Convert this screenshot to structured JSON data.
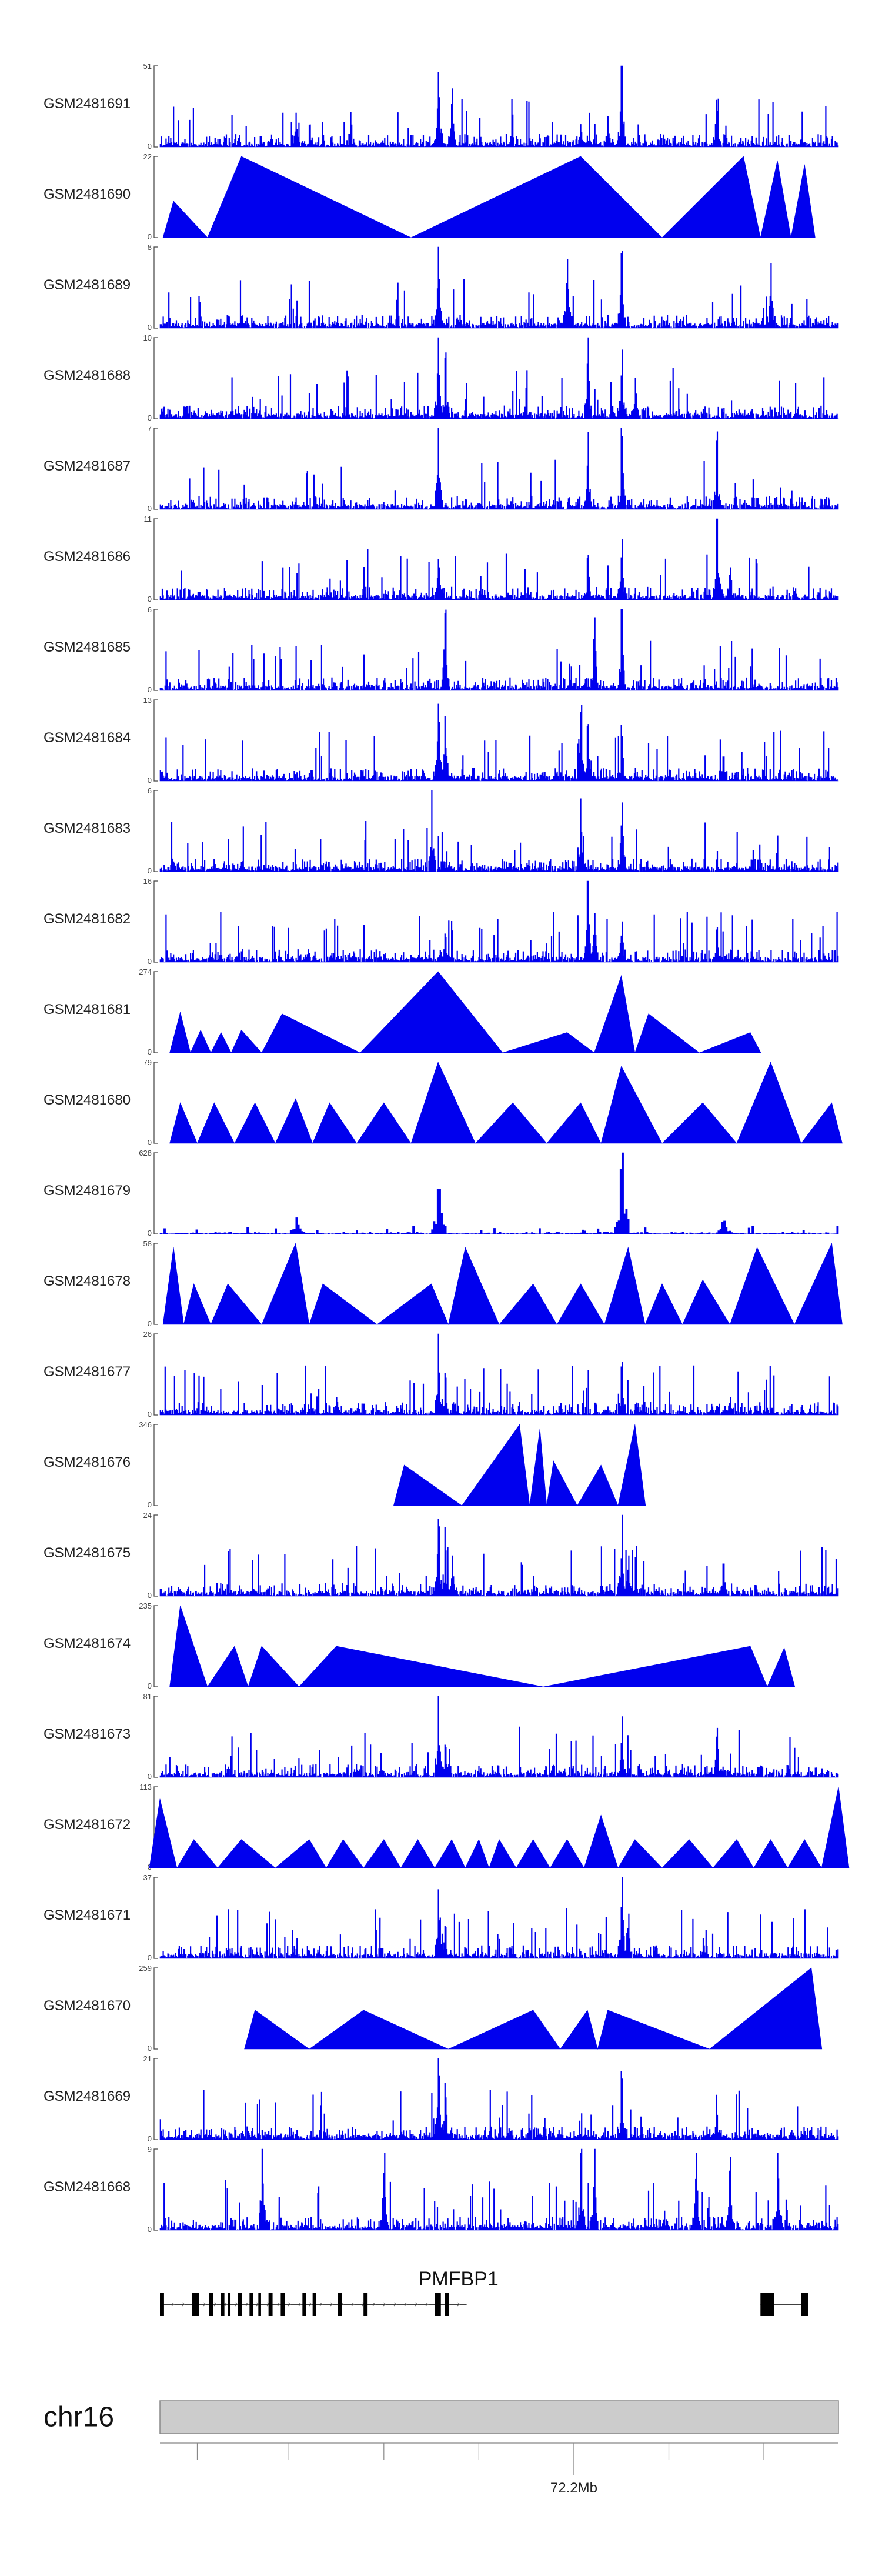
{
  "chart_data": {
    "type": "area",
    "title": "",
    "track_color": "#0000ee",
    "tracks": [
      {
        "name": "GSM2481691",
        "ymax": 51,
        "ylim": [
          0,
          51
        ],
        "style": "dense",
        "seed": 11,
        "peaks": [
          [
            0.2,
            0.42
          ],
          [
            0.41,
            0.92
          ],
          [
            0.43,
            0.72
          ],
          [
            0.62,
            0.28
          ],
          [
            0.66,
            0.38
          ],
          [
            0.68,
            1.0
          ],
          [
            0.82,
            0.58
          ]
        ]
      },
      {
        "name": "GSM2481690",
        "ymax": 22,
        "ylim": [
          0,
          22
        ],
        "style": "sparse",
        "seed": 12,
        "peaks": [
          [
            0.02,
            0.45
          ],
          [
            0.12,
            1.0
          ],
          [
            0.62,
            1.0
          ],
          [
            0.86,
            1.0
          ],
          [
            0.91,
            0.95
          ],
          [
            0.95,
            0.9
          ]
        ]
      },
      {
        "name": "GSM2481689",
        "ymax": 8,
        "ylim": [
          0,
          8
        ],
        "style": "dense",
        "seed": 13,
        "peaks": [
          [
            0.41,
            1.0
          ],
          [
            0.6,
            0.85
          ],
          [
            0.68,
            0.95
          ],
          [
            0.9,
            0.8
          ]
        ]
      },
      {
        "name": "GSM2481688",
        "ymax": 10,
        "ylim": [
          0,
          10
        ],
        "style": "dense",
        "seed": 14,
        "peaks": [
          [
            0.41,
            1.0
          ],
          [
            0.42,
            0.75
          ],
          [
            0.63,
            1.0
          ],
          [
            0.68,
            0.85
          ],
          [
            0.7,
            0.5
          ]
        ]
      },
      {
        "name": "GSM2481687",
        "ymax": 7,
        "ylim": [
          0,
          7
        ],
        "style": "dense",
        "seed": 15,
        "peaks": [
          [
            0.41,
            1.0
          ],
          [
            0.63,
            0.95
          ],
          [
            0.68,
            0.9
          ],
          [
            0.82,
            0.85
          ]
        ]
      },
      {
        "name": "GSM2481686",
        "ymax": 11,
        "ylim": [
          0,
          11
        ],
        "style": "dense",
        "seed": 16,
        "peaks": [
          [
            0.41,
            0.5
          ],
          [
            0.63,
            0.55
          ],
          [
            0.68,
            0.75
          ],
          [
            0.82,
            1.0
          ],
          [
            0.84,
            0.4
          ]
        ]
      },
      {
        "name": "GSM2481685",
        "ymax": 6,
        "ylim": [
          0,
          6
        ],
        "style": "dense",
        "seed": 17,
        "peaks": [
          [
            0.42,
            0.95
          ],
          [
            0.64,
            0.9
          ],
          [
            0.68,
            1.0
          ]
        ]
      },
      {
        "name": "GSM2481684",
        "ymax": 13,
        "ylim": [
          0,
          13
        ],
        "style": "dense",
        "seed": 18,
        "peaks": [
          [
            0.41,
            0.95
          ],
          [
            0.42,
            0.8
          ],
          [
            0.62,
            0.85
          ],
          [
            0.63,
            0.7
          ],
          [
            0.68,
            0.55
          ],
          [
            0.83,
            0.3
          ]
        ]
      },
      {
        "name": "GSM2481683",
        "ymax": 6,
        "ylim": [
          0,
          6
        ],
        "style": "dense",
        "seed": 19,
        "peaks": [
          [
            0.4,
            1.0
          ],
          [
            0.62,
            0.9
          ],
          [
            0.68,
            0.85
          ]
        ]
      },
      {
        "name": "GSM2481682",
        "ymax": 16,
        "ylim": [
          0,
          16
        ],
        "style": "dense",
        "seed": 20,
        "peaks": [
          [
            0.42,
            0.35
          ],
          [
            0.63,
            1.0
          ],
          [
            0.64,
            0.6
          ],
          [
            0.68,
            0.5
          ],
          [
            0.82,
            0.4
          ]
        ]
      },
      {
        "name": "GSM2481681",
        "ymax": 274,
        "ylim": [
          0,
          274
        ],
        "style": "tri",
        "seed": 21,
        "peaks": [
          [
            0.03,
            0.5
          ],
          [
            0.06,
            0.28
          ],
          [
            0.09,
            0.25
          ],
          [
            0.12,
            0.28
          ],
          [
            0.18,
            0.48
          ],
          [
            0.41,
            1.0
          ],
          [
            0.6,
            0.25
          ],
          [
            0.68,
            0.95
          ],
          [
            0.72,
            0.48
          ],
          [
            0.87,
            0.25
          ]
        ]
      },
      {
        "name": "GSM2481680",
        "ymax": 79,
        "ylim": [
          0,
          79
        ],
        "style": "tri",
        "seed": 22,
        "peaks": [
          [
            0.03,
            0.5
          ],
          [
            0.08,
            0.5
          ],
          [
            0.14,
            0.5
          ],
          [
            0.2,
            0.55
          ],
          [
            0.25,
            0.5
          ],
          [
            0.33,
            0.5
          ],
          [
            0.41,
            1.0
          ],
          [
            0.52,
            0.5
          ],
          [
            0.62,
            0.5
          ],
          [
            0.68,
            0.95
          ],
          [
            0.8,
            0.5
          ],
          [
            0.9,
            1.0
          ],
          [
            0.99,
            0.5
          ]
        ]
      },
      {
        "name": "GSM2481679",
        "ymax": 628,
        "ylim": [
          0,
          628
        ],
        "style": "low",
        "seed": 23,
        "peaks": [
          [
            0.2,
            0.2
          ],
          [
            0.41,
            0.55
          ],
          [
            0.68,
            1.0
          ],
          [
            0.83,
            0.16
          ]
        ]
      },
      {
        "name": "GSM2481678",
        "ymax": 58,
        "ylim": [
          0,
          58
        ],
        "style": "tri",
        "seed": 24,
        "peaks": [
          [
            0.02,
            0.95
          ],
          [
            0.05,
            0.5
          ],
          [
            0.1,
            0.5
          ],
          [
            0.2,
            1.0
          ],
          [
            0.24,
            0.5
          ],
          [
            0.4,
            0.5
          ],
          [
            0.45,
            0.95
          ],
          [
            0.55,
            0.5
          ],
          [
            0.62,
            0.5
          ],
          [
            0.69,
            0.95
          ],
          [
            0.74,
            0.5
          ],
          [
            0.8,
            0.55
          ],
          [
            0.88,
            0.95
          ],
          [
            0.99,
            1.0
          ]
        ]
      },
      {
        "name": "GSM2481677",
        "ymax": 26,
        "ylim": [
          0,
          26
        ],
        "style": "dense",
        "seed": 25,
        "peaks": [
          [
            0.26,
            0.22
          ],
          [
            0.41,
            1.0
          ],
          [
            0.42,
            0.4
          ],
          [
            0.68,
            0.65
          ],
          [
            0.84,
            0.22
          ]
        ]
      },
      {
        "name": "GSM2481676",
        "ymax": 346,
        "ylim": [
          0,
          346
        ],
        "style": "tri",
        "seed": 26,
        "peaks": [
          [
            0.36,
            0.5
          ],
          [
            0.53,
            1.0
          ],
          [
            0.56,
            0.95
          ],
          [
            0.58,
            0.55
          ],
          [
            0.65,
            0.5
          ],
          [
            0.7,
            1.0
          ]
        ]
      },
      {
        "name": "GSM2481675",
        "ymax": 24,
        "ylim": [
          0,
          24
        ],
        "style": "dense",
        "seed": 27,
        "peaks": [
          [
            0.41,
            0.95
          ],
          [
            0.42,
            0.85
          ],
          [
            0.43,
            0.5
          ],
          [
            0.68,
            1.0
          ],
          [
            0.69,
            0.5
          ],
          [
            0.83,
            0.4
          ]
        ]
      },
      {
        "name": "GSM2481674",
        "ymax": 235,
        "ylim": [
          0,
          235
        ],
        "style": "tri",
        "seed": 27,
        "peaks": [
          [
            0.03,
            1.0
          ],
          [
            0.11,
            0.5
          ],
          [
            0.15,
            0.5
          ],
          [
            0.26,
            0.5
          ],
          [
            0.87,
            0.5
          ],
          [
            0.92,
            0.48
          ]
        ]
      },
      {
        "name": "GSM2481673",
        "ymax": 81,
        "ylim": [
          0,
          81
        ],
        "style": "dense",
        "seed": 28,
        "peaks": [
          [
            0.41,
            1.0
          ],
          [
            0.42,
            0.4
          ],
          [
            0.68,
            0.75
          ],
          [
            0.82,
            0.5
          ]
        ]
      },
      {
        "name": "GSM2481672",
        "ymax": 113,
        "ylim": [
          0,
          113
        ],
        "style": "tri",
        "seed": 29,
        "peaks": [
          [
            0.0,
            0.85
          ],
          [
            0.05,
            0.35
          ],
          [
            0.12,
            0.35
          ],
          [
            0.22,
            0.35
          ],
          [
            0.27,
            0.35
          ],
          [
            0.33,
            0.35
          ],
          [
            0.38,
            0.35
          ],
          [
            0.43,
            0.35
          ],
          [
            0.47,
            0.35
          ],
          [
            0.5,
            0.35
          ],
          [
            0.55,
            0.35
          ],
          [
            0.6,
            0.35
          ],
          [
            0.65,
            0.65
          ],
          [
            0.7,
            0.35
          ],
          [
            0.78,
            0.35
          ],
          [
            0.85,
            0.35
          ],
          [
            0.9,
            0.35
          ],
          [
            0.95,
            0.35
          ],
          [
            1.0,
            1.0
          ]
        ]
      },
      {
        "name": "GSM2481671",
        "ymax": 37,
        "ylim": [
          0,
          37
        ],
        "style": "dense",
        "seed": 30,
        "peaks": [
          [
            0.41,
            0.85
          ],
          [
            0.42,
            0.4
          ],
          [
            0.68,
            1.0
          ],
          [
            0.69,
            0.55
          ],
          [
            0.8,
            0.25
          ]
        ]
      },
      {
        "name": "GSM2481670",
        "ymax": 259,
        "ylim": [
          0,
          259
        ],
        "style": "tri",
        "seed": 31,
        "peaks": [
          [
            0.14,
            0.48
          ],
          [
            0.3,
            0.48
          ],
          [
            0.55,
            0.48
          ],
          [
            0.63,
            0.48
          ],
          [
            0.66,
            0.48
          ],
          [
            0.96,
            1.0
          ]
        ]
      },
      {
        "name": "GSM2481669",
        "ymax": 21,
        "ylim": [
          0,
          21
        ],
        "style": "dense",
        "seed": 32,
        "peaks": [
          [
            0.41,
            1.0
          ],
          [
            0.42,
            0.7
          ],
          [
            0.68,
            0.75
          ],
          [
            0.82,
            0.55
          ]
        ]
      },
      {
        "name": "GSM2481668",
        "ymax": 9,
        "ylim": [
          0,
          9
        ],
        "style": "dense",
        "seed": 33,
        "peaks": [
          [
            0.15,
            1.0
          ],
          [
            0.33,
            0.95
          ],
          [
            0.62,
            0.95
          ],
          [
            0.64,
            1.0
          ],
          [
            0.79,
            0.95
          ],
          [
            0.84,
            0.9
          ],
          [
            0.91,
            0.95
          ]
        ]
      }
    ],
    "gene": {
      "name": "PMFBP1",
      "exons": [
        [
          0.0,
          0.006
        ],
        [
          0.047,
          0.058
        ],
        [
          0.072,
          0.078
        ],
        [
          0.09,
          0.095
        ],
        [
          0.1,
          0.104
        ],
        [
          0.115,
          0.121
        ],
        [
          0.132,
          0.137
        ],
        [
          0.145,
          0.149
        ],
        [
          0.16,
          0.166
        ],
        [
          0.178,
          0.184
        ],
        [
          0.21,
          0.215
        ],
        [
          0.225,
          0.23
        ],
        [
          0.262,
          0.268
        ],
        [
          0.3,
          0.306
        ],
        [
          0.405,
          0.414
        ],
        [
          0.42,
          0.426
        ],
        [
          0.885,
          0.905
        ],
        [
          0.945,
          0.955
        ]
      ],
      "segments": [
        [
          0.0,
          0.452
        ],
        [
          0.885,
          0.955
        ]
      ]
    },
    "chromosome": {
      "name": "chr16",
      "ticks": [
        0.055,
        0.19,
        0.33,
        0.47,
        0.61,
        0.75,
        0.89
      ],
      "labeled_tick": {
        "pos": 0.61,
        "label": "72.2Mb"
      }
    },
    "ytick_zero": "0"
  }
}
